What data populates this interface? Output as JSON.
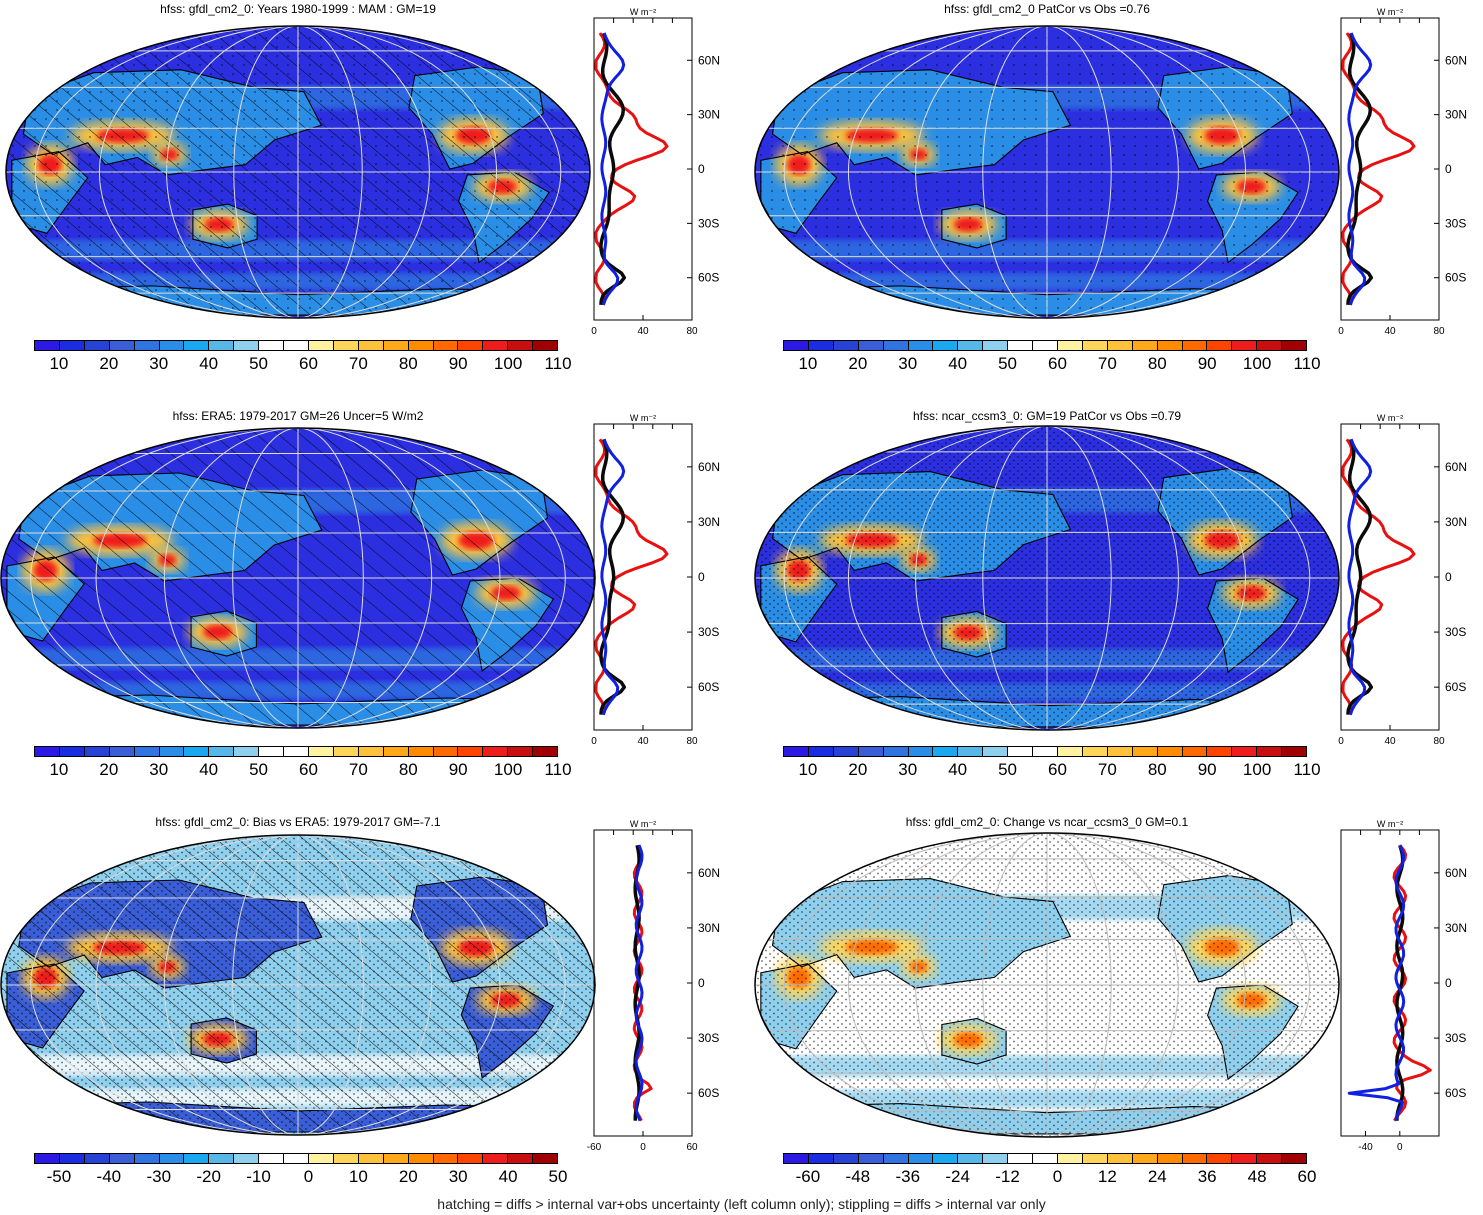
{
  "panels": [
    {
      "title": "hfss: gfdl_cm2_0: Years 1980-1999 : MAM : GM=19",
      "scale": "abs",
      "hatch": true,
      "stipple": "light",
      "profile": "abs1"
    },
    {
      "title": "hfss: gfdl_cm2_0 PatCor vs Obs =0.76",
      "scale": "abs",
      "hatch": false,
      "stipple": "light",
      "profile": "abs1"
    },
    {
      "title": "hfss: ERA5: 1979-2017 GM=26 Uncer=5 W/m2",
      "scale": "abs",
      "hatch": true,
      "stipple": "none",
      "profile": "abs2"
    },
    {
      "title": "hfss: ncar_ccsm3_0: GM=19 PatCor vs Obs =0.79",
      "scale": "abs",
      "hatch": false,
      "stipple": "dense",
      "profile": "abs3"
    },
    {
      "title": "hfss: gfdl_cm2_0: Bias vs ERA5: 1979-2017 GM=-7.1",
      "scale": "bias",
      "hatch": true,
      "stipple": "dense",
      "profile": "bias"
    },
    {
      "title": "hfss: gfdl_cm2_0: Change vs ncar_ccsm3_0 GM=0.1",
      "scale": "change",
      "hatch": false,
      "stipple": "dense",
      "profile": "change"
    }
  ],
  "colorbars": {
    "abs": {
      "labels": [
        "10",
        "20",
        "30",
        "40",
        "50",
        "60",
        "70",
        "80",
        "90",
        "100",
        "110"
      ]
    },
    "bias": {
      "labels": [
        "-50",
        "-40",
        "-30",
        "-20",
        "-10",
        "0",
        "10",
        "20",
        "30",
        "40",
        "50"
      ]
    },
    "change": {
      "labels": [
        "-60",
        "-48",
        "-36",
        "-24",
        "-12",
        "0",
        "12",
        "24",
        "36",
        "48",
        "60"
      ]
    }
  },
  "colors": [
    "#2b1ae6",
    "#1b2de3",
    "#2743d6",
    "#3a5ed8",
    "#2f74e0",
    "#2a8ee6",
    "#1aa8f0",
    "#56b8e8",
    "#8fd0ee",
    "#ffffff",
    "#ffffff",
    "#fff2a0",
    "#ffd65a",
    "#ffc23a",
    "#ffa81a",
    "#ff8c00",
    "#ff6a00",
    "#ff4400",
    "#ee1c1c",
    "#c80e0e",
    "#a00000"
  ],
  "profile_axes": {
    "unit": "W m⁻²",
    "lat_labels": [
      "60N",
      "30N",
      "0",
      "30S",
      "60S"
    ],
    "abs_ticks": [
      "0",
      "40",
      "80"
    ],
    "bias_ticks": [
      "-60",
      "0",
      "60"
    ],
    "change_ticks": [
      "-40",
      "0"
    ]
  },
  "footer": "hatching = diffs > internal var+obs uncertainty (left column only); stippling = diffs > internal var only"
}
